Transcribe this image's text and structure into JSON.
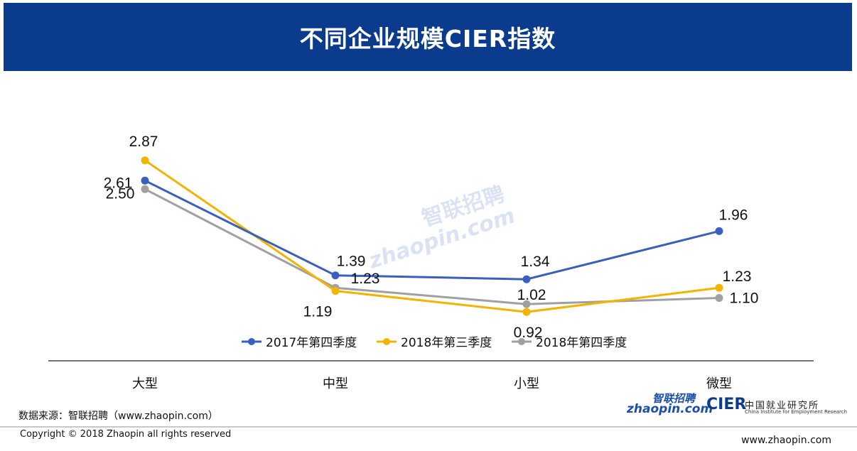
{
  "header": {
    "title": "不同企业规模CIER指数"
  },
  "chart_data": {
    "type": "line",
    "title": "不同企业规模CIER指数",
    "categories": [
      "大型",
      "中型",
      "小型",
      "微型"
    ],
    "series": [
      {
        "name": "2017年第四季度",
        "color": "#3a5fbf",
        "values": [
          2.61,
          1.39,
          1.34,
          1.96
        ],
        "labels": [
          "2.61",
          "1.39",
          "1.34",
          "1.96"
        ]
      },
      {
        "name": "2018年第三季度",
        "color": "#f2b400",
        "values": [
          2.87,
          1.19,
          0.92,
          1.23
        ],
        "labels": [
          "2.87",
          "1.19",
          "0.92",
          "1.23"
        ]
      },
      {
        "name": "2018年第四季度",
        "color": "#a0a0a0",
        "values": [
          2.5,
          1.23,
          1.02,
          1.1
        ],
        "labels": [
          "2.50",
          "1.23",
          "1.02",
          "1.10"
        ]
      }
    ],
    "legend_position": "bottom",
    "grid": false
  },
  "watermark": {
    "cn": "智联招聘",
    "en": "zhaopin.com"
  },
  "footer": {
    "source": "数据来源：智联招聘（www.zhaopin.com）",
    "copyright": "Copyright © 2018 Zhaopin all rights reserved",
    "website": "www.zhaopin.com"
  },
  "logos": {
    "zhaopin_cn": "智联招聘",
    "zhaopin_en": "zhaopin.com",
    "cier": "CIER",
    "cier_cn": "中国就业研究所",
    "cier_en": "China Institute for Employment Research"
  }
}
